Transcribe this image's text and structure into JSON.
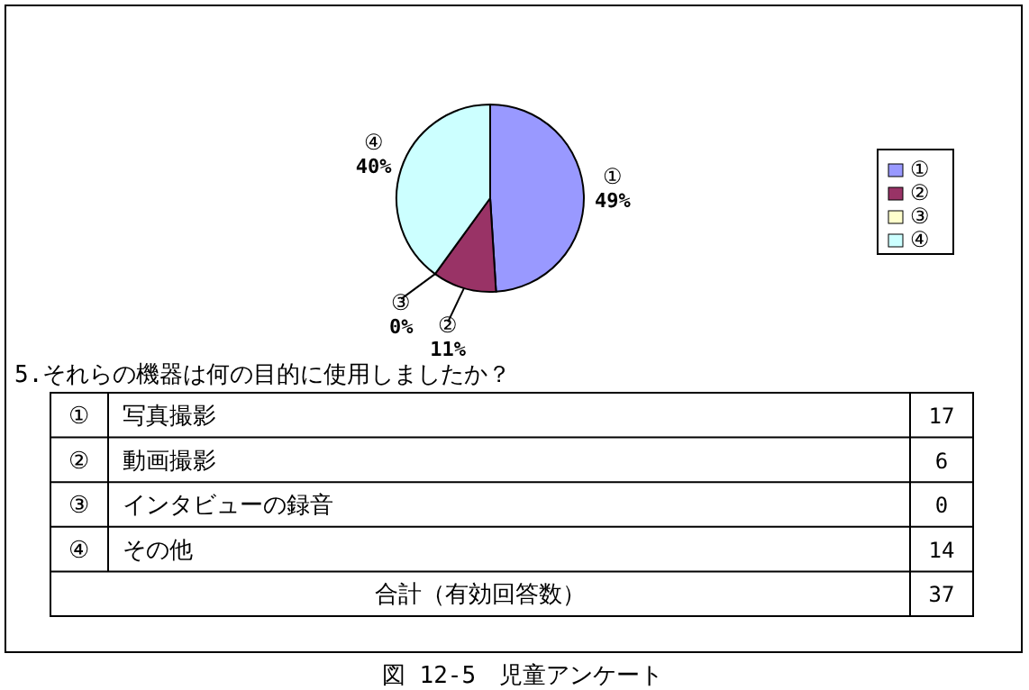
{
  "chart_data": {
    "type": "pie",
    "title": "5.それらの機器は何の目的に使用しましたか？",
    "categories": [
      "①",
      "②",
      "③",
      "④"
    ],
    "values": [
      49,
      11,
      0,
      40
    ],
    "value_labels": [
      "49%",
      "11%",
      "0%",
      "40%"
    ],
    "colors": [
      "#9999ff",
      "#993366",
      "#ffffcc",
      "#ccffff"
    ],
    "legend": "right",
    "annotations": [
      "写真撮影",
      "17",
      "動画撮影",
      "6",
      "インタビューの録音",
      "0",
      "その他",
      "14",
      "合計（有効回答数）",
      "37",
      "図 12-5　児童アンケート"
    ]
  }
}
